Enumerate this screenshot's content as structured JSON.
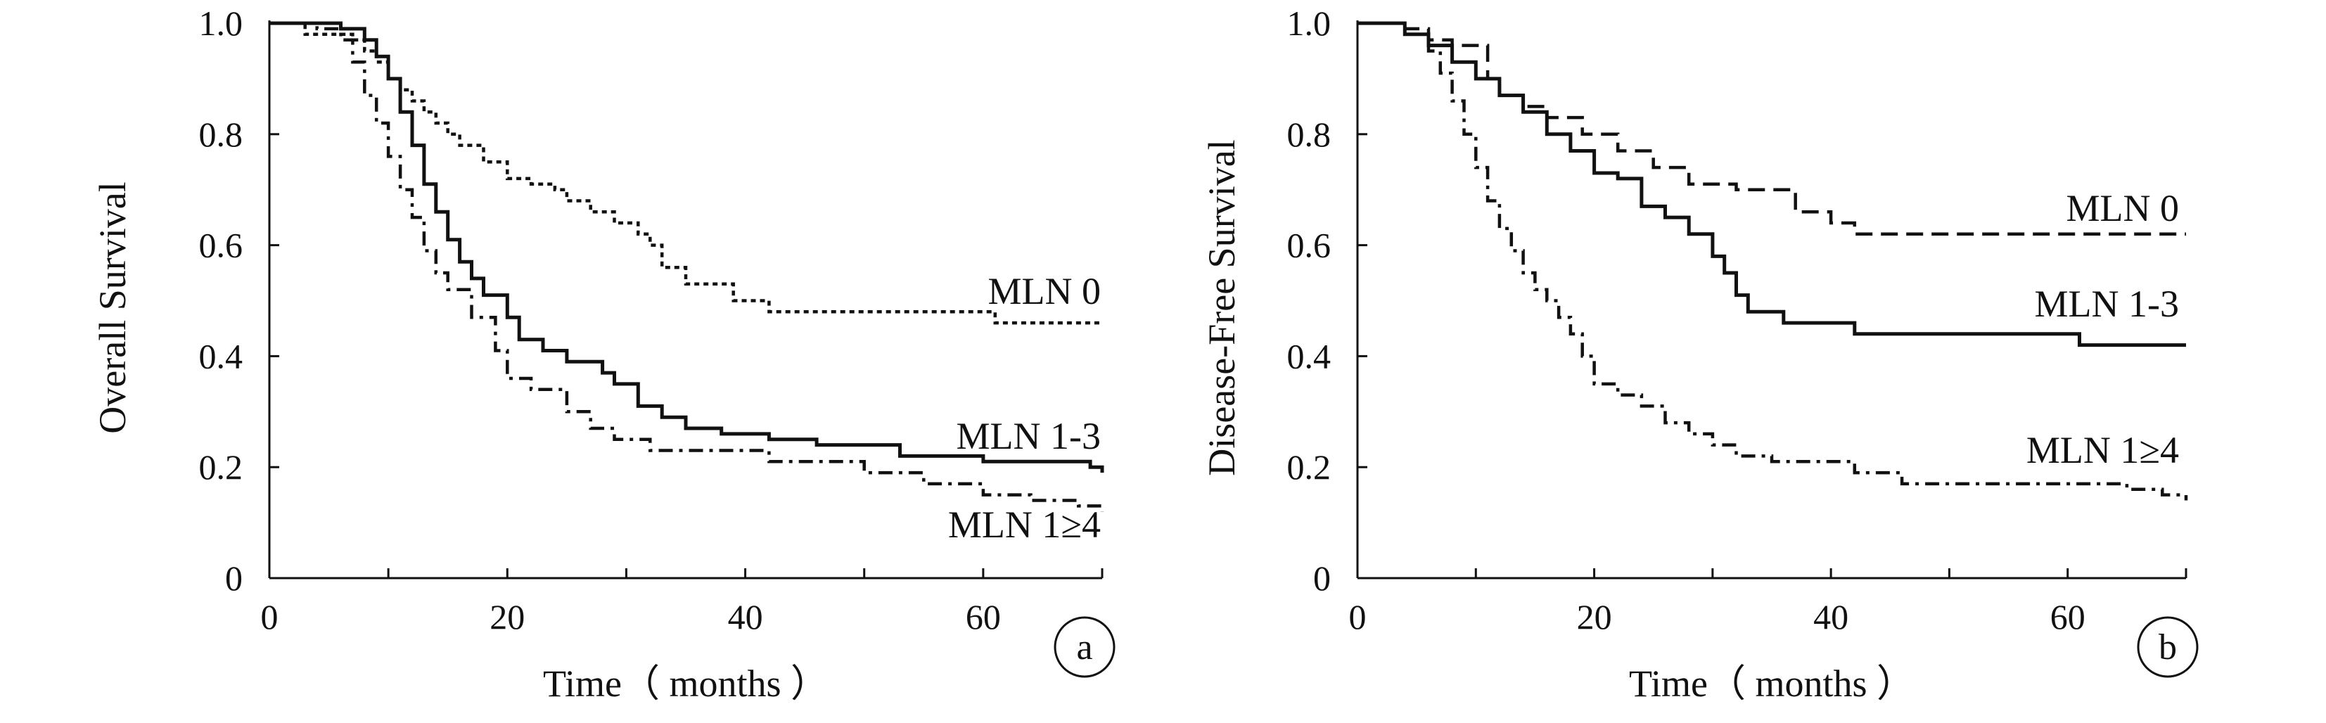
{
  "chart_data": [
    {
      "type": "line",
      "panel": "a",
      "xlabel": "Time（ months ）",
      "ylabel": "Overall Survival",
      "xlim": [
        0,
        70
      ],
      "ylim": [
        0,
        1.0
      ],
      "xticks": [
        0,
        20,
        40,
        60
      ],
      "xtick_labels": [
        "0",
        "20",
        "40",
        "60"
      ],
      "yticks": [
        0,
        0.2,
        0.4,
        0.6,
        0.8,
        1.0
      ],
      "ytick_labels": [
        "0",
        "0.2",
        "0.4",
        "0.6",
        "0.8",
        "1.0"
      ],
      "grid": false,
      "series": [
        {
          "name": "MLN 0",
          "style": "dotted",
          "x": [
            0,
            3,
            6,
            7,
            8,
            9,
            10,
            11,
            12,
            13,
            14,
            15,
            16,
            18,
            20,
            22,
            24,
            25,
            27,
            29,
            31,
            32,
            33,
            35,
            37,
            39,
            42,
            50,
            60,
            61,
            70
          ],
          "y": [
            1.0,
            0.98,
            0.98,
            0.97,
            0.95,
            0.93,
            0.9,
            0.88,
            0.86,
            0.84,
            0.82,
            0.8,
            0.78,
            0.75,
            0.72,
            0.71,
            0.7,
            0.68,
            0.66,
            0.64,
            0.62,
            0.6,
            0.56,
            0.53,
            0.53,
            0.5,
            0.48,
            0.48,
            0.48,
            0.46,
            0.46
          ]
        },
        {
          "name": "MLN 1-3",
          "style": "solid",
          "x": [
            0,
            4,
            6,
            8,
            9,
            10,
            11,
            12,
            13,
            14,
            15,
            16,
            17,
            18,
            20,
            21,
            23,
            25,
            28,
            29,
            31,
            33,
            35,
            38,
            42,
            46,
            48,
            53,
            60,
            69,
            70
          ],
          "y": [
            1.0,
            1.0,
            0.99,
            0.97,
            0.94,
            0.9,
            0.84,
            0.78,
            0.71,
            0.66,
            0.61,
            0.57,
            0.54,
            0.51,
            0.47,
            0.43,
            0.41,
            0.39,
            0.37,
            0.35,
            0.31,
            0.29,
            0.27,
            0.26,
            0.25,
            0.24,
            0.24,
            0.22,
            0.21,
            0.2,
            0.19
          ]
        },
        {
          "name": "MLN 1≥4",
          "style": "dash-dot",
          "x": [
            0,
            4,
            6,
            7,
            8,
            9,
            10,
            11,
            12,
            13,
            14,
            15,
            17,
            19,
            20,
            22,
            25,
            27,
            29,
            32,
            35,
            40,
            42,
            50,
            55,
            60,
            64,
            68,
            70
          ],
          "y": [
            1.0,
            0.99,
            0.97,
            0.93,
            0.87,
            0.82,
            0.76,
            0.7,
            0.65,
            0.59,
            0.55,
            0.52,
            0.47,
            0.41,
            0.36,
            0.34,
            0.3,
            0.27,
            0.25,
            0.23,
            0.23,
            0.23,
            0.21,
            0.19,
            0.17,
            0.15,
            0.14,
            0.13,
            0.12
          ]
        }
      ],
      "annotations": [
        "MLN 0",
        "MLN 1-3",
        "MLN 1≥4"
      ]
    },
    {
      "type": "line",
      "panel": "b",
      "xlabel": "Time（ months ）",
      "ylabel": "Disease-Free Survival",
      "xlim": [
        0,
        70
      ],
      "ylim": [
        0,
        1.0
      ],
      "xticks": [
        0,
        20,
        40,
        60
      ],
      "xtick_labels": [
        "0",
        "20",
        "40",
        "60"
      ],
      "yticks": [
        0,
        0.2,
        0.4,
        0.6,
        0.8,
        1.0
      ],
      "ytick_labels": [
        "0",
        "0.2",
        "0.4",
        "0.6",
        "0.8",
        "1.0"
      ],
      "grid": false,
      "series": [
        {
          "name": "MLN 0",
          "style": "dashed",
          "x": [
            0,
            4,
            6,
            8,
            11,
            12,
            14,
            16,
            19,
            22,
            25,
            28,
            32,
            35,
            37,
            40,
            42,
            50,
            60,
            70
          ],
          "y": [
            1.0,
            0.99,
            0.97,
            0.96,
            0.9,
            0.87,
            0.85,
            0.83,
            0.8,
            0.77,
            0.74,
            0.71,
            0.7,
            0.7,
            0.66,
            0.64,
            0.62,
            0.62,
            0.62,
            0.62
          ]
        },
        {
          "name": "MLN 1-3",
          "style": "solid",
          "x": [
            0,
            4,
            6,
            8,
            10,
            12,
            14,
            16,
            18,
            20,
            22,
            24,
            26,
            28,
            30,
            31,
            32,
            33,
            36,
            42,
            50,
            60,
            61,
            70
          ],
          "y": [
            1.0,
            0.98,
            0.96,
            0.93,
            0.9,
            0.87,
            0.84,
            0.8,
            0.77,
            0.73,
            0.72,
            0.67,
            0.65,
            0.62,
            0.58,
            0.55,
            0.51,
            0.48,
            0.46,
            0.44,
            0.44,
            0.44,
            0.42,
            0.42
          ]
        },
        {
          "name": "MLN 1≥4",
          "style": "dash-dot",
          "x": [
            0,
            4,
            6,
            7,
            8,
            9,
            10,
            11,
            12,
            13,
            14,
            15,
            16,
            17,
            18,
            19,
            20,
            22,
            24,
            26,
            28,
            30,
            32,
            35,
            38,
            42,
            46,
            50,
            55,
            60,
            65,
            68,
            70
          ],
          "y": [
            1.0,
            0.98,
            0.95,
            0.91,
            0.86,
            0.8,
            0.74,
            0.68,
            0.63,
            0.59,
            0.55,
            0.52,
            0.5,
            0.47,
            0.44,
            0.4,
            0.35,
            0.33,
            0.31,
            0.28,
            0.26,
            0.24,
            0.22,
            0.21,
            0.21,
            0.19,
            0.17,
            0.17,
            0.17,
            0.17,
            0.16,
            0.15,
            0.14
          ]
        }
      ],
      "annotations": [
        "MLN 0",
        "MLN 1-3",
        "MLN 1≥4"
      ]
    }
  ]
}
